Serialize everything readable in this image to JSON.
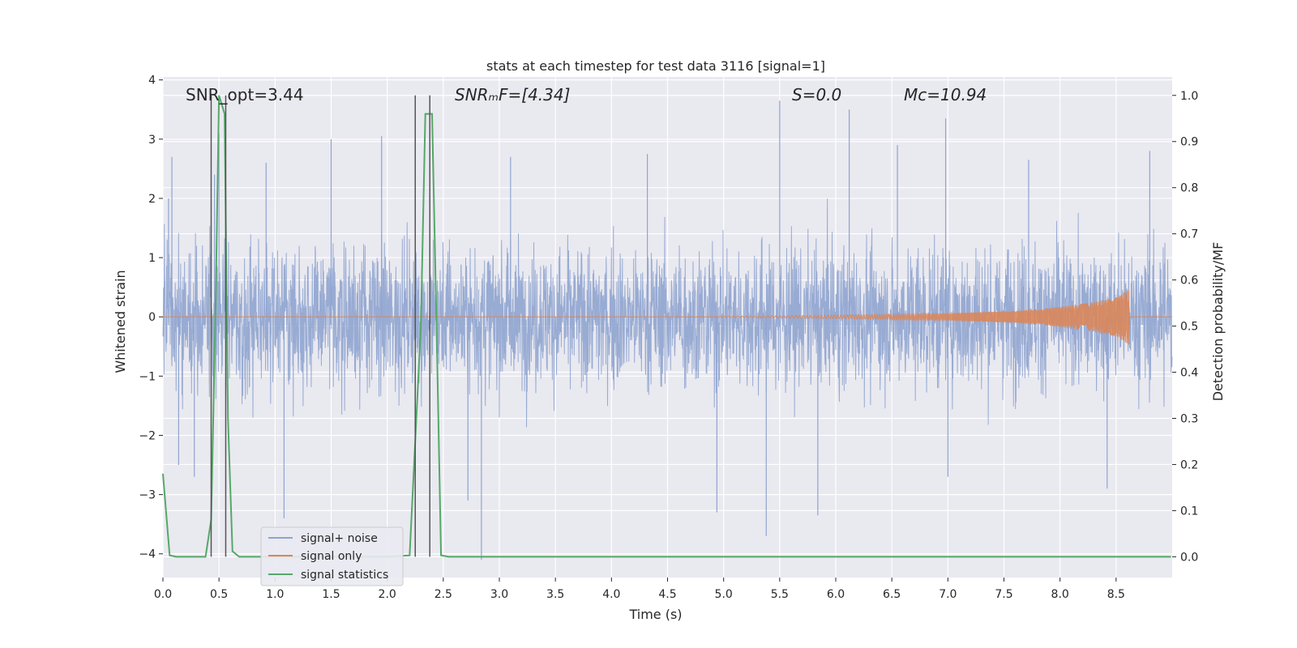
{
  "chart_data": {
    "type": "line",
    "title": "stats at each timestep for test data 3116 [signal=1]",
    "xlabel": "Time (s)",
    "ylabel_left": "Whitened strain",
    "ylabel_right": "Detection probability/MF",
    "xlim": [
      0.0,
      9.0
    ],
    "ylim_left": [
      -4.4,
      4.05
    ],
    "ylim_right": [
      -0.045,
      1.04
    ],
    "x_ticks": [
      0.0,
      0.5,
      1.0,
      1.5,
      2.0,
      2.5,
      3.0,
      3.5,
      4.0,
      4.5,
      5.0,
      5.5,
      6.0,
      6.5,
      7.0,
      7.5,
      8.0,
      8.5
    ],
    "x_tick_labels": [
      "0.0",
      "0.5",
      "1.0",
      "1.5",
      "2.0",
      "2.5",
      "3.0",
      "3.5",
      "4.0",
      "4.5",
      "5.0",
      "5.5",
      "6.0",
      "6.5",
      "7.0",
      "7.5",
      "8.0",
      "8.5"
    ],
    "y_left_ticks": [
      4,
      3,
      2,
      1,
      0,
      -1,
      -2,
      -3,
      -4
    ],
    "y_left_tick_labels": [
      "4",
      "3",
      "2",
      "1",
      "0",
      "−1",
      "−2",
      "−3",
      "−4"
    ],
    "y_right_ticks": [
      1.0,
      0.9,
      0.8,
      0.7,
      0.6,
      0.5,
      0.4,
      0.3,
      0.2,
      0.1,
      0.0
    ],
    "y_right_tick_labels": [
      "1.0",
      "0.9",
      "0.8",
      "0.7",
      "0.6",
      "0.5",
      "0.4",
      "0.3",
      "0.2",
      "0.1",
      "0.0"
    ],
    "grid": true,
    "legend_placement": "lower-left",
    "annotations": {
      "snr_opt": "SNR_opt=3.44",
      "snr_mf": "SNRₘF=[4.34]",
      "s_value": "S=0.0",
      "mc_value": "Mᴄ=10.94"
    },
    "series": [
      {
        "name": "signal+ noise",
        "color": "#8fa4cf",
        "description_kind": "noise",
        "typical_amplitude": 1.5,
        "peak_values": [
          {
            "x": 0.05,
            "y": 2.0
          },
          {
            "x": 0.08,
            "y": 2.7
          },
          {
            "x": 0.14,
            "y": -2.5
          },
          {
            "x": 0.28,
            "y": -2.7
          },
          {
            "x": 0.46,
            "y": 2.4
          },
          {
            "x": 0.5,
            "y": 3.1
          },
          {
            "x": 0.92,
            "y": 2.6
          },
          {
            "x": 1.08,
            "y": -3.4
          },
          {
            "x": 1.5,
            "y": 3.0
          },
          {
            "x": 1.95,
            "y": 3.05
          },
          {
            "x": 2.72,
            "y": -3.1
          },
          {
            "x": 2.84,
            "y": -4.1
          },
          {
            "x": 3.1,
            "y": 2.7
          },
          {
            "x": 4.32,
            "y": 2.75
          },
          {
            "x": 4.94,
            "y": -3.3
          },
          {
            "x": 5.38,
            "y": -3.7
          },
          {
            "x": 5.5,
            "y": 3.65
          },
          {
            "x": 5.84,
            "y": -3.35
          },
          {
            "x": 6.12,
            "y": 3.5
          },
          {
            "x": 6.55,
            "y": 2.9
          },
          {
            "x": 6.98,
            "y": 3.35
          },
          {
            "x": 7.0,
            "y": -2.7
          },
          {
            "x": 7.72,
            "y": 2.65
          },
          {
            "x": 8.42,
            "y": -2.9
          },
          {
            "x": 8.8,
            "y": 2.8
          }
        ]
      },
      {
        "name": "signal only",
        "color": "#dd8452",
        "description_kind": "chirp",
        "start_x": 4.6,
        "merger_x": 8.62,
        "amplitude_points": [
          {
            "x": 4.6,
            "y": 0.0
          },
          {
            "x": 6.0,
            "y": 0.03
          },
          {
            "x": 7.0,
            "y": 0.06
          },
          {
            "x": 7.6,
            "y": 0.1
          },
          {
            "x": 8.0,
            "y": 0.17
          },
          {
            "x": 8.3,
            "y": 0.25
          },
          {
            "x": 8.5,
            "y": 0.33
          },
          {
            "x": 8.62,
            "y": 0.48
          }
        ]
      },
      {
        "name": "signal statistics",
        "color": "#55a868",
        "axis": "right",
        "x": [
          0.0,
          0.06,
          0.12,
          0.26,
          0.38,
          0.43,
          0.47,
          0.5,
          0.55,
          0.58,
          0.62,
          0.68,
          0.8,
          1.0,
          1.5,
          2.0,
          2.2,
          2.3,
          2.34,
          2.4,
          2.44,
          2.48,
          2.55,
          2.7,
          3.0,
          5.0,
          7.0,
          8.99
        ],
        "y": [
          0.18,
          0.003,
          0.0,
          0.0,
          0.0,
          0.08,
          0.55,
          1.0,
          0.96,
          0.3,
          0.012,
          0.0,
          0.0,
          0.0,
          0.0,
          0.0,
          0.003,
          0.5,
          0.96,
          0.96,
          0.5,
          0.003,
          0.0,
          0.0,
          0.0,
          0.0,
          0.0,
          0.0
        ]
      }
    ],
    "vertical_markers_x": [
      0.43,
      0.56,
      2.25,
      2.38
    ],
    "marker_top_y": 1.0
  }
}
